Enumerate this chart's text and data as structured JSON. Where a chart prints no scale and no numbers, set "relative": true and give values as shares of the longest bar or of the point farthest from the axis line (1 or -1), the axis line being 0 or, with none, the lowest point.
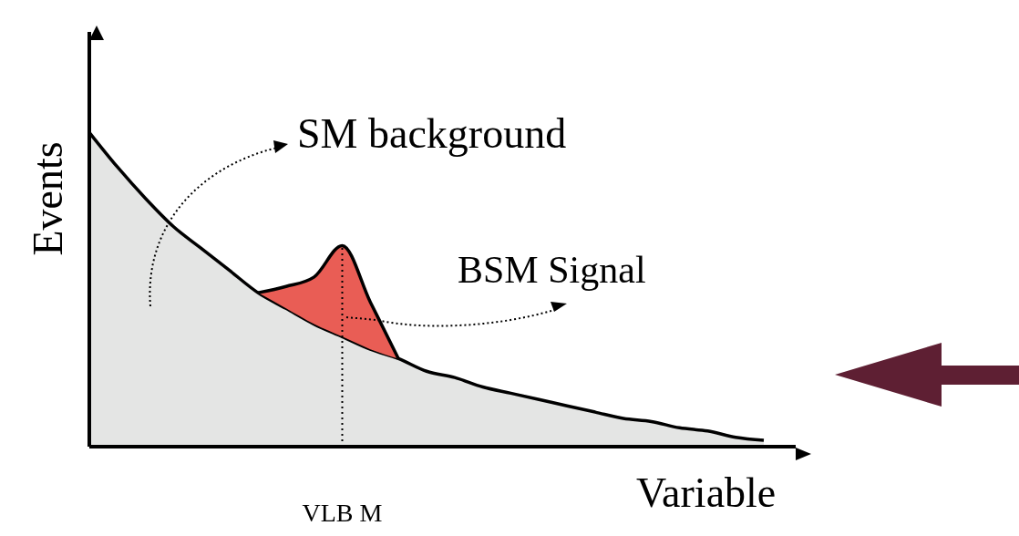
{
  "chart_data": {
    "type": "area",
    "stacked": true,
    "relative": true,
    "xlabel": "Variable",
    "ylabel": "Events",
    "legend": "top",
    "annotations": [
      "VLB M"
    ],
    "grid": false,
    "marker": "none",
    "line_style": "solid",
    "categories": [
      null,
      null,
      null,
      null,
      null,
      null,
      null,
      null,
      null,
      null,
      null,
      null,
      null,
      null,
      null,
      null,
      null,
      null,
      null,
      null,
      null,
      null,
      null,
      null,
      null
    ],
    "series": [
      {
        "name": "SM background",
        "color": "#e4e5e4",
        "values": [
          1.0,
          0.89,
          0.79,
          0.7,
          0.63,
          0.56,
          0.49,
          0.44,
          0.39,
          0.35,
          0.31,
          0.28,
          0.24,
          0.22,
          0.19,
          0.17,
          0.15,
          0.13,
          0.11,
          0.09,
          0.08,
          0.06,
          0.05,
          0.03,
          0.02
        ]
      },
      {
        "name": "BSM Signal",
        "color": "#e95d55",
        "values": [
          null,
          null,
          null,
          null,
          null,
          null,
          0,
          0.07,
          0.15,
          0.29,
          0.15,
          0,
          null,
          null,
          null,
          null,
          null,
          null,
          null,
          null,
          null,
          null,
          null,
          null,
          null
        ]
      }
    ]
  }
}
